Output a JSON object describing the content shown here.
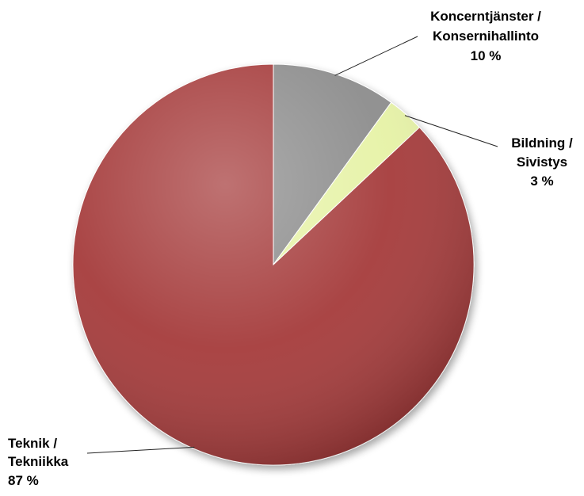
{
  "chart_data": {
    "type": "pie",
    "title": "",
    "slices": [
      {
        "label_line1": "Koncerntjänster /",
        "label_line2": "Konsernihallinto",
        "value": 10,
        "value_text": "10 %",
        "color": "#8c8c8c"
      },
      {
        "label_line1": "Bildning /",
        "label_line2": "Sivistys",
        "value": 3,
        "value_text": "3 %",
        "color": "#e6f2a6"
      },
      {
        "label_line1": "Teknik /",
        "label_line2": "Tekniikka",
        "value": 87,
        "value_text": "87 %",
        "color": "#a53a3a"
      }
    ],
    "start_angle_deg": 0,
    "direction": "clockwise",
    "legend": "none",
    "label_style": "outside with leader lines"
  }
}
